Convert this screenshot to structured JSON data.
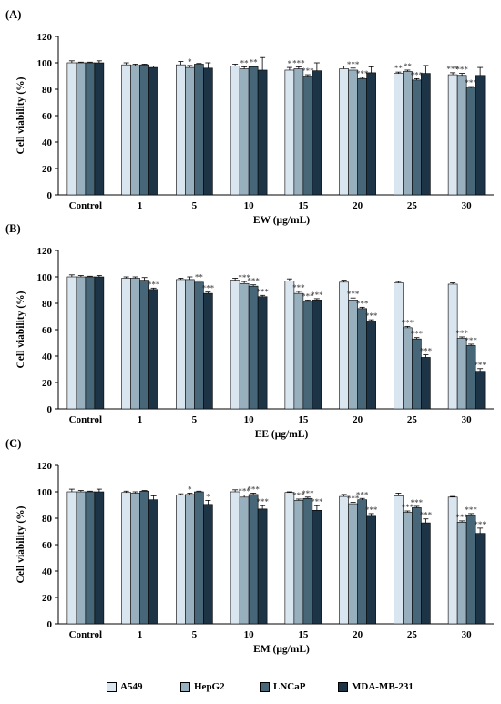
{
  "colors": {
    "A549": "#dae6ef",
    "HepG2": "#98afbd",
    "LNCaP": "#476677",
    "MDA-MB-231": "#1d3446"
  },
  "legend": [
    {
      "name": "A549",
      "color": "#dae6ef"
    },
    {
      "name": "HepG2",
      "color": "#98afbd"
    },
    {
      "name": "LNCaP",
      "color": "#476677"
    },
    {
      "name": "MDA-MB-231",
      "color": "#1d3446"
    }
  ],
  "chart_data": [
    {
      "type": "bar",
      "panel": "(A)",
      "xlabel": "EW (μg/mL)",
      "ylabel": "Cell viability (%)",
      "ylim": [
        0,
        120
      ],
      "yticks": [
        0,
        20,
        40,
        60,
        80,
        100,
        120
      ],
      "categories": [
        "Control",
        "1",
        "5",
        "10",
        "15",
        "20",
        "25",
        "30"
      ],
      "series": [
        {
          "name": "A549",
          "values": [
            100,
            98.5,
            98.5,
            97.5,
            94.5,
            95.5,
            92,
            91
          ],
          "errors": [
            1.5,
            1.5,
            2.5,
            1.5,
            2,
            2,
            1,
            1.5
          ],
          "sig": [
            "",
            "",
            "",
            "",
            "*",
            "",
            "**",
            "***"
          ]
        },
        {
          "name": "HepG2",
          "values": [
            100,
            98,
            96.5,
            95.5,
            95.5,
            94.5,
            93.5,
            90.5
          ],
          "errors": [
            0.5,
            1,
            1.5,
            1.5,
            1.5,
            1.5,
            1,
            1.5
          ],
          "sig": [
            "",
            "",
            "*",
            "**",
            "***",
            "***",
            "**",
            "***"
          ]
        },
        {
          "name": "LNCaP",
          "values": [
            100,
            98.5,
            99,
            97,
            90,
            88,
            87,
            81
          ],
          "errors": [
            0.5,
            0.5,
            0.5,
            0.5,
            1,
            1,
            1,
            1
          ],
          "sig": [
            "",
            "",
            "",
            "**",
            "***",
            "***",
            "***",
            "***"
          ]
        },
        {
          "name": "MDA-MB-231",
          "values": [
            100,
            96.5,
            96,
            94.5,
            94,
            92.5,
            92,
            90.5
          ],
          "errors": [
            1.5,
            1,
            4,
            9.5,
            6,
            4.5,
            6,
            6
          ],
          "sig": [
            "",
            "",
            "",
            "",
            "",
            "",
            "",
            ""
          ]
        }
      ]
    },
    {
      "type": "bar",
      "panel": "(B)",
      "xlabel": "EE (μg/mL)",
      "ylabel": "Cell viability (%)",
      "ylim": [
        0,
        120
      ],
      "yticks": [
        0,
        20,
        40,
        60,
        80,
        100,
        120
      ],
      "categories": [
        "Control",
        "1",
        "5",
        "10",
        "15",
        "20",
        "25",
        "30"
      ],
      "series": [
        {
          "name": "A549",
          "values": [
            100,
            99,
            98,
            97.5,
            97,
            96,
            95.5,
            94.5
          ],
          "errors": [
            1.5,
            1,
            1,
            1.5,
            1.5,
            1.5,
            1,
            1
          ],
          "sig": [
            "",
            "",
            "",
            "",
            "",
            "",
            "",
            ""
          ]
        },
        {
          "name": "HepG2",
          "values": [
            100,
            99,
            98,
            95,
            87.5,
            82.5,
            61.5,
            53.5
          ],
          "errors": [
            1,
            1,
            2,
            1.5,
            1.5,
            1.5,
            1,
            1
          ],
          "sig": [
            "",
            "",
            "",
            "***",
            "***",
            "***",
            "***",
            "***"
          ]
        },
        {
          "name": "LNCaP",
          "values": [
            100,
            97.5,
            96,
            93,
            81.5,
            76,
            53,
            48
          ],
          "errors": [
            0.5,
            2,
            1,
            1,
            1,
            1,
            1,
            1
          ],
          "sig": [
            "",
            "",
            "**",
            "***",
            "***",
            "***",
            "***",
            "***"
          ]
        },
        {
          "name": "MDA-MB-231",
          "values": [
            100,
            90.5,
            87.5,
            85,
            82.5,
            66.5,
            39,
            28.5
          ],
          "errors": [
            1,
            1,
            1,
            1,
            1,
            1,
            2,
            2
          ],
          "sig": [
            "",
            "***",
            "***",
            "***",
            "***",
            "***",
            "***",
            "***"
          ]
        }
      ]
    },
    {
      "type": "bar",
      "panel": "(C)",
      "xlabel": "EM (μg/mL)",
      "ylabel": "Cell viability (%)",
      "ylim": [
        0,
        120
      ],
      "yticks": [
        0,
        20,
        40,
        60,
        80,
        100,
        120
      ],
      "categories": [
        "Control",
        "1",
        "5",
        "10",
        "15",
        "20",
        "25",
        "30"
      ],
      "series": [
        {
          "name": "A549",
          "values": [
            100,
            99.5,
            97.5,
            100,
            99.5,
            96.5,
            97,
            96
          ],
          "errors": [
            2,
            1,
            1,
            1.5,
            0.5,
            1.5,
            2,
            0.5
          ],
          "sig": [
            "",
            "",
            "",
            "",
            "",
            "",
            "",
            ""
          ]
        },
        {
          "name": "HepG2",
          "values": [
            100,
            99,
            98,
            96,
            93.5,
            91,
            84.5,
            77
          ],
          "errors": [
            1,
            1,
            1,
            1.5,
            1,
            1,
            1,
            1
          ],
          "sig": [
            "",
            "",
            "*",
            "***",
            "***",
            "***",
            "***",
            "***"
          ]
        },
        {
          "name": "LNCaP",
          "values": [
            100,
            100.5,
            100,
            98,
            95,
            94,
            88,
            82
          ],
          "errors": [
            0.5,
            0.5,
            0.5,
            1,
            1,
            1,
            1,
            1.5
          ],
          "sig": [
            "",
            "",
            "",
            "***",
            "***",
            "***",
            "***",
            "***"
          ]
        },
        {
          "name": "MDA-MB-231",
          "values": [
            100,
            94,
            90.5,
            87,
            86,
            81.5,
            76.5,
            68.5
          ],
          "errors": [
            2,
            3,
            3,
            2.5,
            3.5,
            2,
            3,
            4
          ],
          "sig": [
            "",
            "",
            "*",
            "***",
            "***",
            "***",
            "***",
            "***"
          ]
        }
      ]
    }
  ]
}
